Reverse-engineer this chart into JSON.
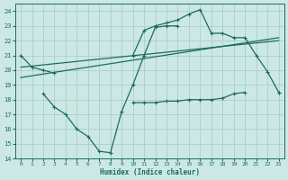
{
  "bg_color": "#cce8e4",
  "grid_color": "#aacfc9",
  "line_color": "#1c6b62",
  "xlabel": "Humidex (Indice chaleur)",
  "xlim": [
    -0.5,
    23.5
  ],
  "ylim": [
    14,
    24.5
  ],
  "yticks": [
    14,
    15,
    16,
    17,
    18,
    19,
    20,
    21,
    22,
    23,
    24
  ],
  "xticks": [
    0,
    1,
    2,
    3,
    4,
    5,
    6,
    7,
    8,
    9,
    10,
    11,
    12,
    13,
    14,
    15,
    16,
    17,
    18,
    19,
    20,
    21,
    22,
    23
  ],
  "curve1_x": [
    0,
    1,
    2,
    3,
    10,
    11,
    12,
    13,
    14,
    15,
    16,
    17,
    18,
    19,
    20,
    21,
    22,
    23
  ],
  "curve1_y": [
    21.0,
    20.2,
    20.0,
    19.8,
    21.0,
    22.7,
    23.0,
    23.2,
    23.4,
    23.8,
    24.1,
    22.5,
    22.5,
    22.2,
    22.2,
    21.0,
    19.9,
    18.5
  ],
  "curve1_break": [
    3,
    10
  ],
  "curve2_x": [
    2,
    3,
    4,
    5,
    6,
    7,
    8,
    9,
    10,
    11,
    12,
    13,
    14
  ],
  "curve2_y": [
    18.4,
    17.5,
    17.0,
    16.0,
    15.5,
    14.5,
    14.4,
    17.2,
    19.0,
    21.0,
    22.9,
    23.0,
    23.0
  ],
  "curve3_x": [
    10,
    11,
    12,
    13,
    14,
    15,
    16,
    17,
    18,
    19,
    20,
    23
  ],
  "curve3_y": [
    17.8,
    17.8,
    17.8,
    17.9,
    17.9,
    18.0,
    18.0,
    18.0,
    18.1,
    18.4,
    18.5,
    18.5
  ],
  "curve3_break": [
    20,
    23
  ],
  "trend1_x": [
    0,
    23
  ],
  "trend1_y": [
    19.5,
    22.2
  ],
  "trend2_x": [
    0,
    23
  ],
  "trend2_y": [
    20.2,
    22.0
  ]
}
